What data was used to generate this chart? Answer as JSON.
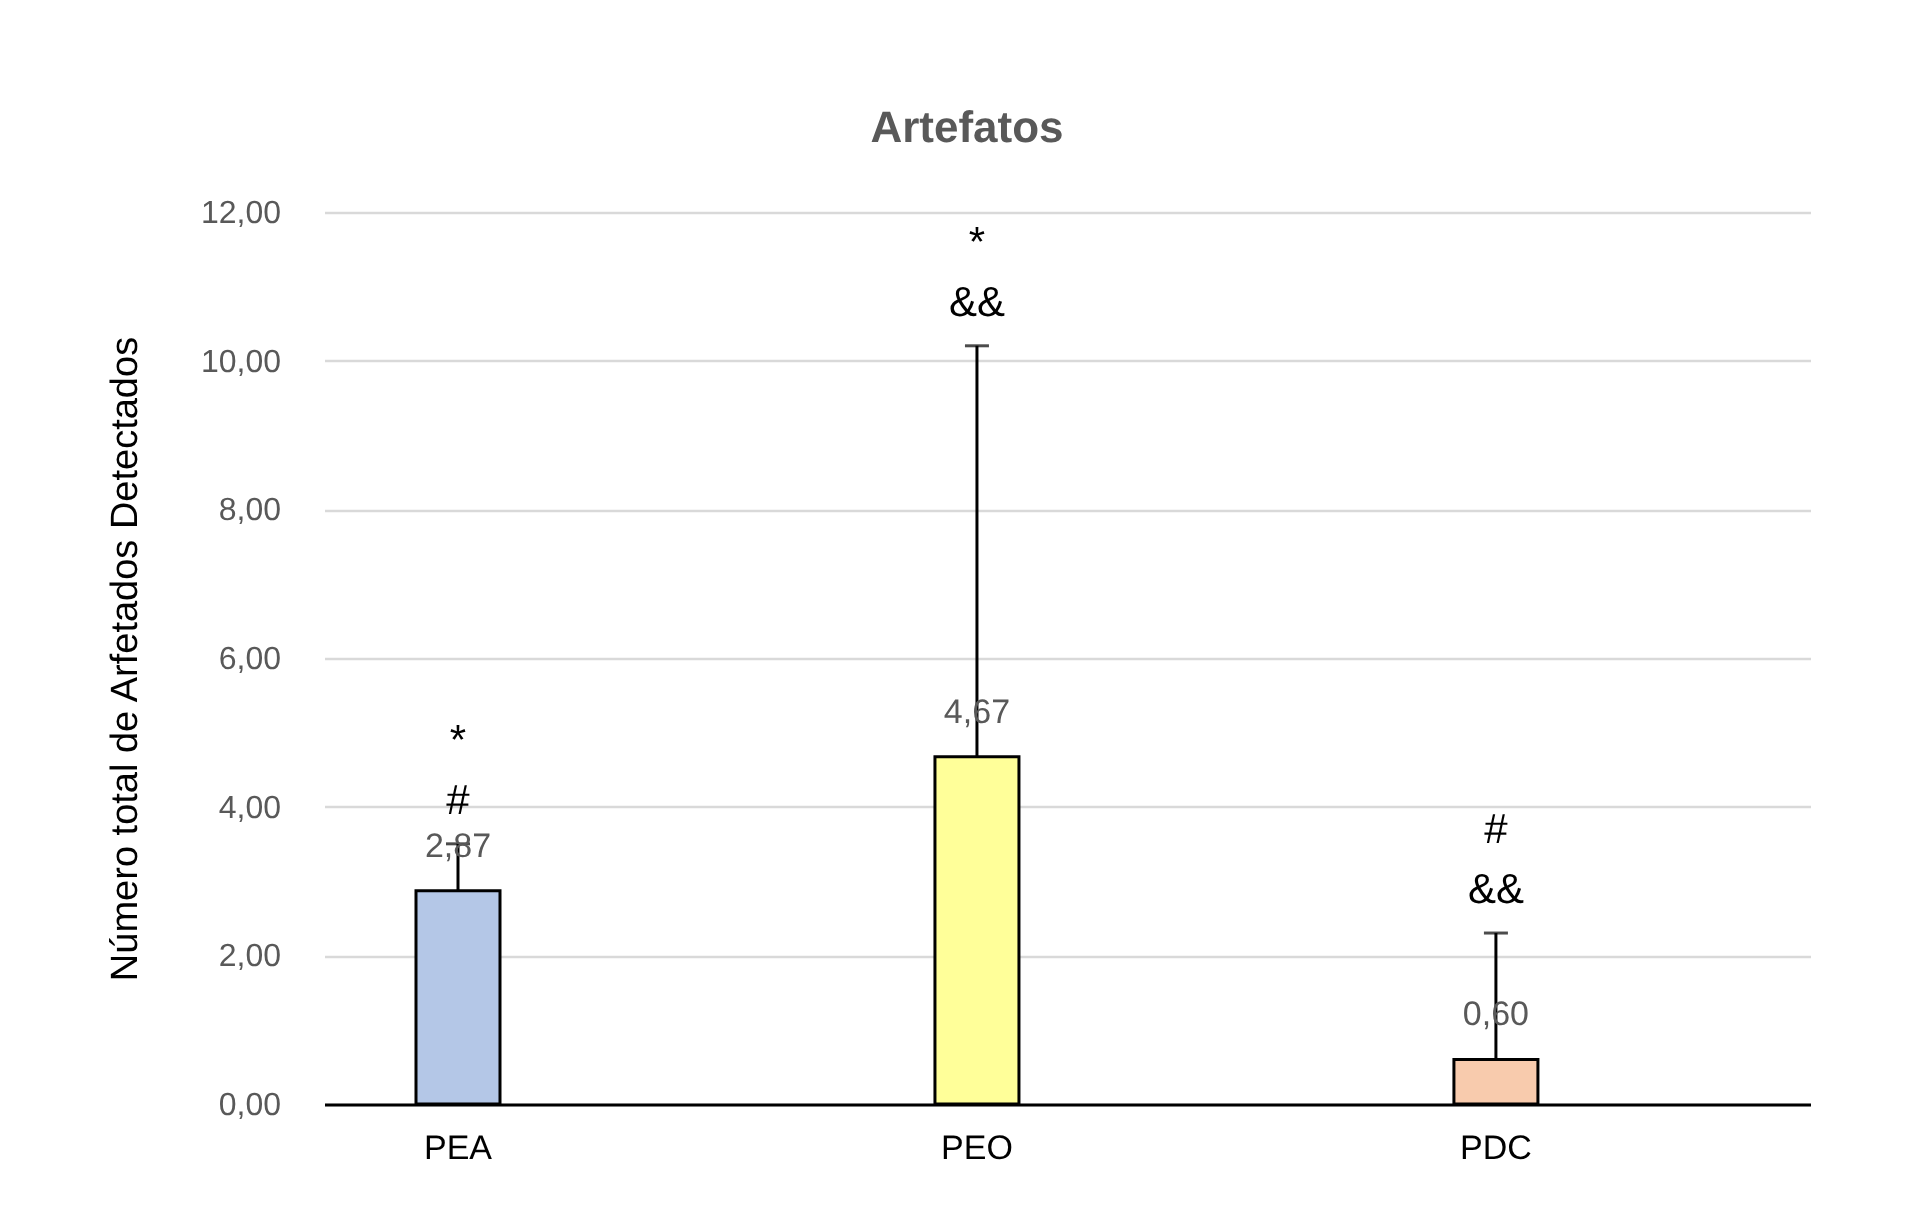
{
  "chart_data": {
    "type": "bar",
    "title": "Artefatos",
    "ylabel": "Número total de Arfetados Detectados",
    "categories": [
      "PEA",
      "PEO",
      "PDC"
    ],
    "values": [
      2.87,
      4.67,
      0.6
    ],
    "colors": [
      "#b4c7e7",
      "#ffff99",
      "#f8cbad"
    ],
    "value_labels": [
      "2,87",
      "4,67",
      "0,60"
    ],
    "errors": [
      [
        2.87,
        3.5
      ],
      [
        4.67,
        10.2
      ],
      [
        0.6,
        2.3
      ]
    ],
    "ylim": [
      0,
      12
    ],
    "yticks": [
      {
        "value": 0,
        "label": "0,00"
      },
      {
        "value": 2,
        "label": "2,00"
      },
      {
        "value": 4,
        "label": "4,00"
      },
      {
        "value": 6,
        "label": "6,00"
      },
      {
        "value": 8,
        "label": "8,00"
      },
      {
        "value": 10,
        "label": "10,00"
      },
      {
        "value": 12,
        "label": "12,00"
      }
    ],
    "annotations": [
      {
        "text": "*",
        "x": "PEA",
        "y": 3.5
      },
      {
        "text": "#",
        "x": "PEA",
        "y": 3.5
      },
      {
        "text": "*",
        "x": "PEO",
        "y": 10.2
      },
      {
        "text": "&&",
        "x": "PEO",
        "y": 10.2
      },
      {
        "text": "#",
        "x": "PDC",
        "y": 2.3
      },
      {
        "text": "&&",
        "x": "PDC",
        "y": 2.3
      }
    ],
    "grid": "y",
    "legend": false
  }
}
